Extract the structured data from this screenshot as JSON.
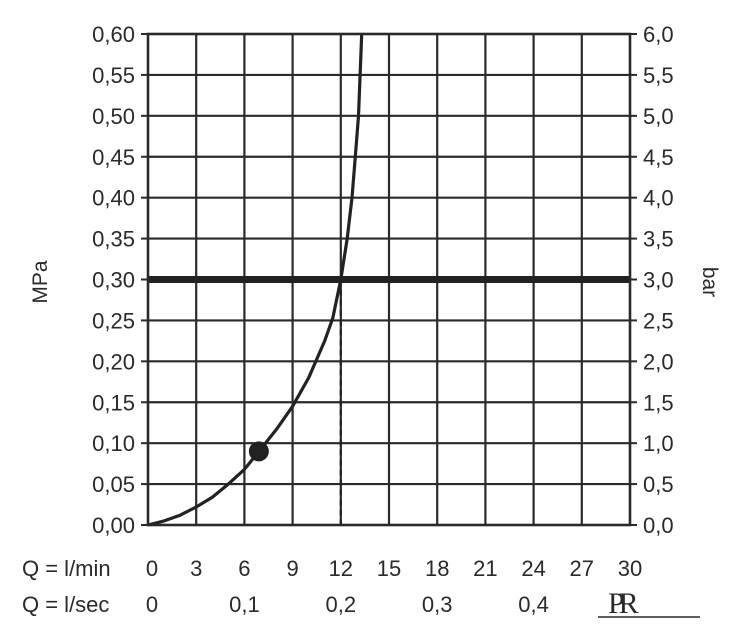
{
  "chart_data": {
    "type": "line",
    "title": "",
    "ylabel_left": "MPa",
    "ylabel_right": "bar",
    "xlim": [
      0,
      30
    ],
    "ylim": [
      0,
      0.6
    ],
    "y2lim": [
      0,
      6
    ],
    "grid": true,
    "x_ticks_lmin": [
      "0",
      "3",
      "6",
      "9",
      "12",
      "15",
      "18",
      "21",
      "24",
      "27",
      "30"
    ],
    "x_ticks_lsec": [
      {
        "value": 0,
        "label": "0"
      },
      {
        "value": 6,
        "label": "0,1"
      },
      {
        "value": 12,
        "label": "0,2"
      },
      {
        "value": 18,
        "label": "0,3"
      },
      {
        "value": 24,
        "label": "0,4"
      }
    ],
    "x_row_labels": [
      "Q = l/min",
      "Q = l/sec"
    ],
    "y_ticks_left": [
      "0,00",
      "0,05",
      "0,10",
      "0,15",
      "0,20",
      "0,25",
      "0,30",
      "0,35",
      "0,40",
      "0,45",
      "0,50",
      "0,55",
      "0,60"
    ],
    "y_ticks_right": [
      "0,0",
      "0,5",
      "1,0",
      "1,5",
      "2,0",
      "2,5",
      "3,0",
      "3,5",
      "4,0",
      "4,5",
      "5,0",
      "5,5",
      "6,0"
    ],
    "series": [
      {
        "type": "curve",
        "x": [
          0,
          1,
          2,
          3,
          4,
          5,
          6,
          6.9,
          8,
          9,
          10,
          11,
          11.5,
          12,
          12.4,
          12.7,
          12.9,
          13.1,
          13.2,
          13.3
        ],
        "y": [
          0,
          0.005,
          0.012,
          0.022,
          0.034,
          0.05,
          0.068,
          0.09,
          0.117,
          0.145,
          0.18,
          0.225,
          0.253,
          0.3,
          0.35,
          0.4,
          0.45,
          0.5,
          0.55,
          0.6
        ]
      }
    ],
    "reference_line": {
      "y": 0.3
    },
    "marker_point": {
      "x": 6.9,
      "y": 0.09
    },
    "drop_line": {
      "x": 12,
      "y": 0.3
    },
    "colors": {
      "line": "#222222",
      "grid": "#2a2a2a",
      "text": "#2a2a2a"
    }
  },
  "logo": {
    "text": "PR"
  }
}
